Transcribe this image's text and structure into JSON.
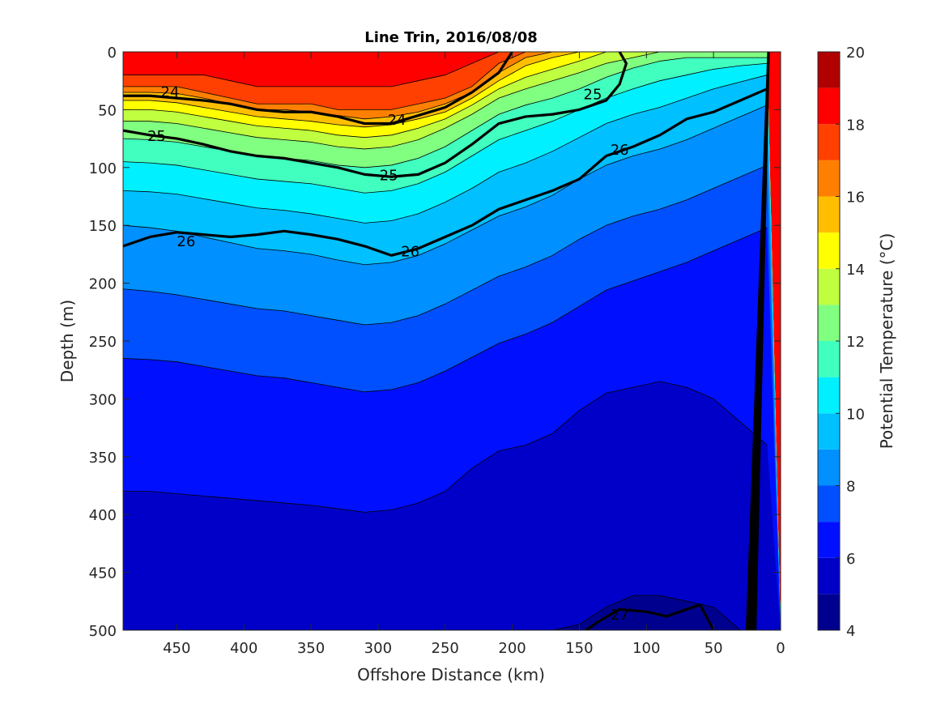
{
  "chart_data": {
    "type": "heatmap",
    "title": "Line Trin, 2016/08/08",
    "xlabel": "Offshore Distance (km)",
    "ylabel": "Depth (m)",
    "colorbar_label": "Potential Temperature (°C)",
    "x_axis": {
      "range": [
        490,
        0
      ],
      "reversed": true,
      "ticks": [
        450,
        400,
        350,
        300,
        250,
        200,
        150,
        100,
        50,
        0
      ]
    },
    "y_axis": {
      "range": [
        0,
        500
      ],
      "reversed": true,
      "ticks": [
        0,
        50,
        100,
        150,
        200,
        250,
        300,
        350,
        400,
        450,
        500
      ]
    },
    "colorbar": {
      "range": [
        4,
        20
      ],
      "ticks": [
        4,
        6,
        8,
        10,
        12,
        14,
        16,
        18,
        20
      ],
      "levels": [
        {
          "from": 4,
          "to": 5,
          "color": "#00008f"
        },
        {
          "from": 5,
          "to": 6,
          "color": "#0000c8"
        },
        {
          "from": 6,
          "to": 7,
          "color": "#0010ff"
        },
        {
          "from": 7,
          "to": 8,
          "color": "#0050ff"
        },
        {
          "from": 8,
          "to": 9,
          "color": "#0090ff"
        },
        {
          "from": 9,
          "to": 10,
          "color": "#00c0ff"
        },
        {
          "from": 10,
          "to": 11,
          "color": "#00f0ff"
        },
        {
          "from": 11,
          "to": 12,
          "color": "#40ffbf"
        },
        {
          "from": 12,
          "to": 13,
          "color": "#80ff80"
        },
        {
          "from": 13,
          "to": 14,
          "color": "#bfff40"
        },
        {
          "from": 14,
          "to": 15,
          "color": "#ffff00"
        },
        {
          "from": 15,
          "to": 16,
          "color": "#ffbf00"
        },
        {
          "from": 16,
          "to": 17,
          "color": "#ff8000"
        },
        {
          "from": 17,
          "to": 18,
          "color": "#ff4000"
        },
        {
          "from": 18,
          "to": 19,
          "color": "#ff0000"
        },
        {
          "from": 19,
          "to": 20,
          "color": "#b00000"
        }
      ]
    },
    "temperature_field": {
      "x_km": [
        490,
        470,
        450,
        430,
        410,
        390,
        370,
        350,
        330,
        310,
        290,
        270,
        250,
        230,
        210,
        190,
        170,
        150,
        130,
        110,
        90,
        70,
        50,
        30,
        10
      ],
      "depth_isotherms_m": [
        {
          "temp": 18,
          "depth": [
            20,
            20,
            20,
            20,
            25,
            30,
            30,
            30,
            30,
            30,
            30,
            25,
            20,
            10,
            0,
            0,
            0,
            0,
            0,
            0,
            0,
            0,
            0,
            0,
            0
          ]
        },
        {
          "temp": 17,
          "depth": [
            30,
            30,
            30,
            35,
            40,
            45,
            45,
            45,
            50,
            50,
            50,
            45,
            40,
            30,
            10,
            0,
            0,
            0,
            0,
            0,
            0,
            0,
            0,
            0,
            0
          ]
        },
        {
          "temp": 16,
          "depth": [
            35,
            35,
            36,
            40,
            45,
            50,
            50,
            52,
            55,
            58,
            56,
            52,
            45,
            35,
            18,
            5,
            0,
            0,
            0,
            0,
            0,
            0,
            0,
            0,
            0
          ]
        },
        {
          "temp": 15,
          "depth": [
            42,
            42,
            44,
            48,
            52,
            56,
            58,
            60,
            63,
            65,
            63,
            58,
            52,
            40,
            25,
            12,
            5,
            0,
            0,
            0,
            0,
            0,
            0,
            0,
            0
          ]
        },
        {
          "temp": 14,
          "depth": [
            50,
            50,
            52,
            56,
            60,
            64,
            66,
            68,
            72,
            74,
            72,
            66,
            58,
            46,
            32,
            22,
            15,
            8,
            0,
            0,
            0,
            0,
            0,
            0,
            0
          ]
        },
        {
          "temp": 13,
          "depth": [
            60,
            60,
            62,
            66,
            70,
            74,
            76,
            78,
            82,
            84,
            82,
            76,
            66,
            54,
            40,
            32,
            25,
            18,
            10,
            5,
            0,
            0,
            0,
            0,
            0
          ]
        },
        {
          "temp": 12,
          "depth": [
            75,
            76,
            78,
            82,
            86,
            90,
            92,
            94,
            98,
            100,
            98,
            92,
            82,
            68,
            54,
            46,
            40,
            32,
            22,
            14,
            8,
            5,
            5,
            5,
            5
          ]
        },
        {
          "temp": 11,
          "depth": [
            95,
            96,
            98,
            102,
            106,
            110,
            112,
            114,
            118,
            122,
            120,
            114,
            104,
            90,
            76,
            68,
            60,
            50,
            40,
            32,
            25,
            20,
            15,
            12,
            10
          ]
        },
        {
          "temp": 10,
          "depth": [
            120,
            121,
            123,
            127,
            131,
            135,
            137,
            140,
            144,
            148,
            146,
            140,
            130,
            118,
            104,
            96,
            86,
            74,
            62,
            54,
            48,
            40,
            32,
            26,
            20
          ]
        },
        {
          "temp": 9,
          "depth": [
            150,
            152,
            155,
            160,
            165,
            170,
            172,
            175,
            180,
            184,
            182,
            176,
            166,
            154,
            142,
            134,
            124,
            110,
            98,
            90,
            84,
            76,
            66,
            56,
            46
          ]
        },
        {
          "temp": 8,
          "depth": [
            205,
            207,
            210,
            214,
            218,
            222,
            224,
            228,
            232,
            236,
            234,
            228,
            218,
            206,
            194,
            186,
            176,
            162,
            150,
            142,
            136,
            128,
            118,
            108,
            98
          ]
        },
        {
          "temp": 7,
          "depth": [
            265,
            266,
            268,
            272,
            276,
            280,
            282,
            286,
            290,
            294,
            292,
            286,
            276,
            264,
            252,
            244,
            234,
            220,
            206,
            198,
            190,
            182,
            172,
            162,
            152
          ]
        },
        {
          "temp": 6,
          "depth": [
            380,
            380,
            382,
            384,
            386,
            388,
            390,
            392,
            395,
            398,
            396,
            390,
            380,
            360,
            345,
            340,
            330,
            310,
            295,
            290,
            285,
            290,
            300,
            320,
            340
          ]
        },
        {
          "temp": 5,
          "depth": [
            500,
            500,
            500,
            500,
            500,
            500,
            500,
            500,
            500,
            500,
            500,
            500,
            500,
            500,
            500,
            500,
            500,
            495,
            480,
            470,
            470,
            475,
            480,
            500,
            500
          ]
        }
      ]
    },
    "density_contours": [
      {
        "label": "24",
        "x_km": [
          490,
          470,
          450,
          430,
          410,
          390,
          370,
          350,
          330,
          310,
          290,
          270,
          250,
          230,
          210,
          200
        ],
        "depth_m": [
          38,
          38,
          40,
          42,
          45,
          50,
          52,
          52,
          56,
          62,
          62,
          55,
          48,
          35,
          18,
          0
        ]
      },
      {
        "label": "25",
        "x_km": [
          490,
          470,
          450,
          430,
          410,
          390,
          370,
          350,
          330,
          310,
          290,
          270,
          250,
          230,
          210,
          190,
          170,
          150,
          130,
          120,
          115,
          120
        ],
        "depth_m": [
          68,
          72,
          75,
          80,
          86,
          90,
          92,
          96,
          100,
          106,
          108,
          106,
          96,
          80,
          62,
          56,
          54,
          50,
          42,
          28,
          10,
          0
        ]
      },
      {
        "label": "26",
        "x_km": [
          490,
          470,
          450,
          430,
          410,
          390,
          370,
          350,
          330,
          310,
          290,
          270,
          250,
          230,
          210,
          190,
          170,
          150,
          130,
          110,
          90,
          70,
          50,
          30,
          10
        ],
        "depth_m": [
          168,
          160,
          156,
          158,
          160,
          158,
          155,
          158,
          162,
          168,
          176,
          170,
          160,
          150,
          136,
          128,
          120,
          110,
          90,
          82,
          72,
          58,
          52,
          42,
          32
        ]
      },
      {
        "label": "27",
        "x_km": [
          145,
          135,
          120,
          100,
          85,
          70,
          60,
          50
        ],
        "depth_m": [
          500,
          492,
          482,
          484,
          488,
          482,
          478,
          500
        ]
      }
    ],
    "contour_labels": [
      {
        "text": "24",
        "x_km": 455,
        "depth_m": 34
      },
      {
        "text": "24",
        "x_km": 286,
        "depth_m": 58
      },
      {
        "text": "25",
        "x_km": 140,
        "depth_m": 36
      },
      {
        "text": "25",
        "x_km": 465,
        "depth_m": 72
      },
      {
        "text": "25",
        "x_km": 292,
        "depth_m": 106
      },
      {
        "text": "26",
        "x_km": 120,
        "depth_m": 84
      },
      {
        "text": "26",
        "x_km": 443,
        "depth_m": 163
      },
      {
        "text": "26",
        "x_km": 276,
        "depth_m": 172
      },
      {
        "text": "27",
        "x_km": 120,
        "depth_m": 486
      }
    ],
    "bathymetry": {
      "x_km": [
        10,
        8,
        18,
        26
      ],
      "depth_m": [
        0,
        0,
        500,
        500
      ],
      "color": "#000000"
    }
  }
}
